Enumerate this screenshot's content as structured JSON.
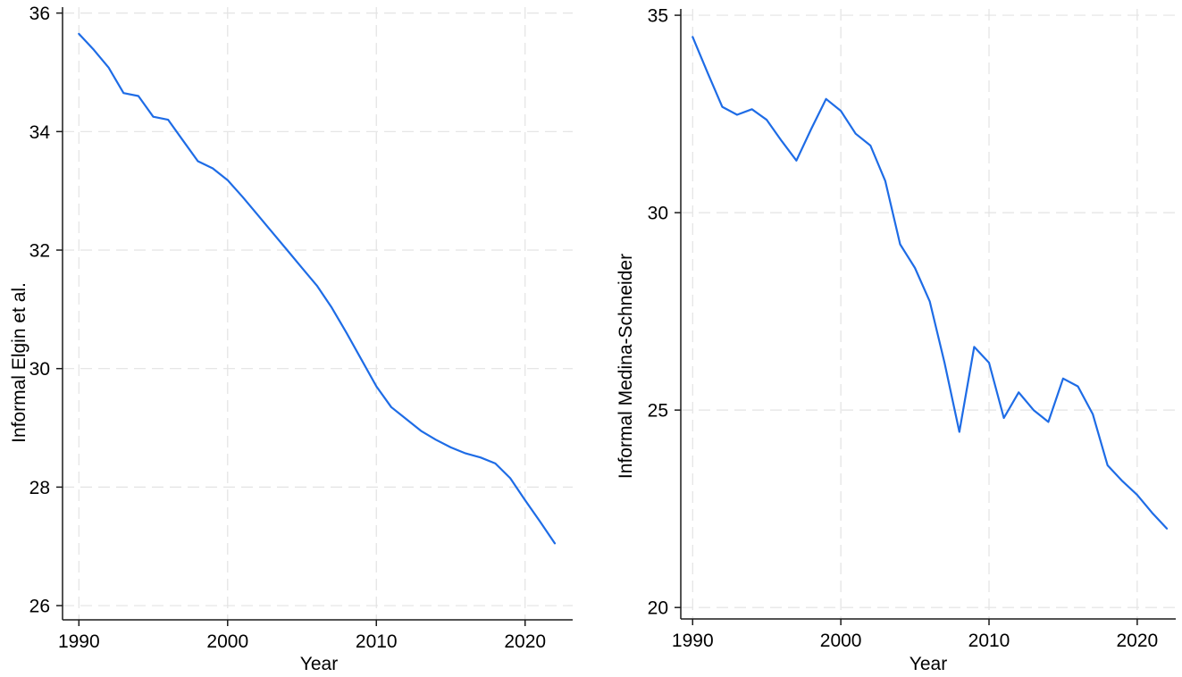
{
  "figure": {
    "background_color": "#ffffff",
    "text_color": "#000000",
    "axis_color": "#1a1a1a",
    "gridline_color": "#e3e3e3",
    "accent_line_color": "#1e6ce6"
  },
  "chart_data": [
    {
      "type": "line",
      "title": "",
      "xlabel": "Year",
      "ylabel": "Informal Elgin et al.",
      "line_color": "#1e6ce6",
      "grid": true,
      "legend": "none",
      "xticks": [
        1990,
        2000,
        2010,
        2020
      ],
      "yticks": [
        26,
        28,
        30,
        32,
        34,
        36
      ],
      "xlim": [
        1988.9,
        2023.2
      ],
      "ylim": [
        25.76,
        36.1
      ],
      "x": [
        1990,
        1991,
        1992,
        1993,
        1994,
        1995,
        1996,
        1997,
        1998,
        1999,
        2000,
        2001,
        2002,
        2003,
        2004,
        2005,
        2006,
        2007,
        2008,
        2009,
        2010,
        2011,
        2012,
        2013,
        2014,
        2015,
        2016,
        2017,
        2018,
        2019,
        2020,
        2021,
        2022
      ],
      "series": [
        {
          "name": "Informal Elgin et al.",
          "values": [
            35.65,
            35.38,
            35.08,
            34.65,
            34.6,
            34.25,
            34.2,
            33.85,
            33.5,
            33.38,
            33.18,
            32.9,
            32.6,
            32.3,
            32.0,
            31.7,
            31.4,
            31.03,
            30.6,
            30.15,
            29.7,
            29.35,
            29.15,
            28.95,
            28.8,
            28.67,
            28.57,
            28.5,
            28.4,
            28.15,
            27.78,
            27.42,
            27.05
          ]
        }
      ]
    },
    {
      "type": "line",
      "title": "",
      "xlabel": "Year",
      "ylabel": "Informal Medina-Schneider",
      "line_color": "#1e6ce6",
      "grid": true,
      "legend": "none",
      "xticks": [
        1990,
        2000,
        2010,
        2020
      ],
      "yticks": [
        20,
        25,
        30,
        35
      ],
      "xlim": [
        1989.2,
        2022.6
      ],
      "ylim": [
        19.71,
        35.16
      ],
      "x": [
        1990,
        1991,
        1992,
        1993,
        1994,
        1995,
        1996,
        1997,
        1998,
        1999,
        2000,
        2001,
        2002,
        2003,
        2004,
        2005,
        2006,
        2007,
        2008,
        2009,
        2010,
        2011,
        2012,
        2013,
        2014,
        2015,
        2016,
        2017,
        2018,
        2019,
        2020,
        2021,
        2022
      ],
      "series": [
        {
          "name": "Informal Medina-Schneider",
          "values": [
            34.45,
            33.55,
            32.68,
            32.48,
            32.62,
            32.35,
            31.82,
            31.32,
            32.12,
            32.88,
            32.58,
            32.0,
            31.7,
            30.8,
            29.2,
            28.6,
            27.75,
            26.2,
            24.45,
            26.6,
            26.2,
            24.8,
            25.45,
            25.0,
            24.7,
            25.8,
            25.6,
            24.9,
            23.6,
            23.2,
            22.85,
            22.4,
            22.0
          ]
        }
      ]
    }
  ]
}
